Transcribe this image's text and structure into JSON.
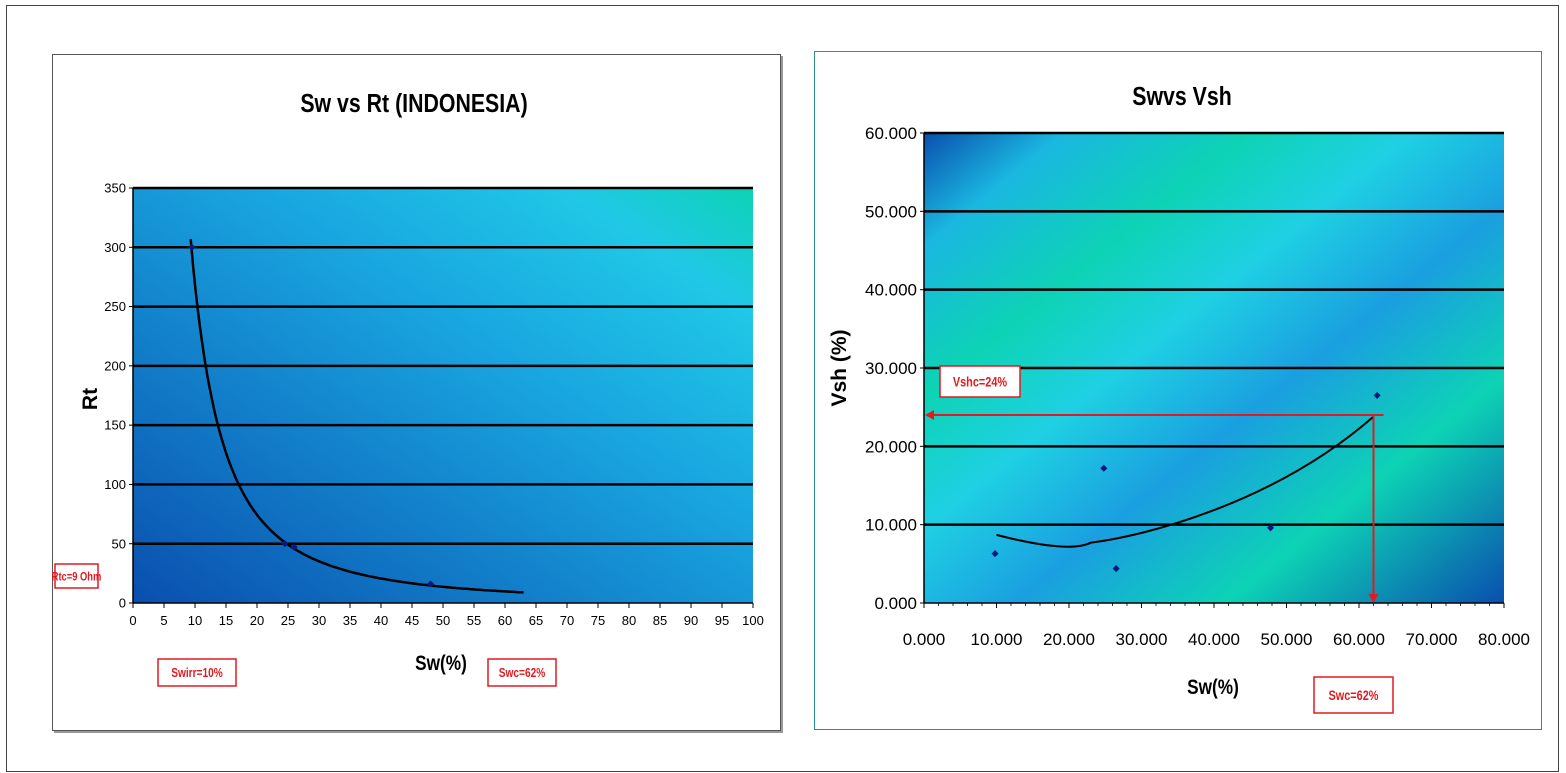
{
  "colors": {
    "plot_dark": "#0a4fae",
    "plot_mid": "#19a6e0",
    "plot_light": "#0dd3b5",
    "grid": "#000000",
    "annotation": "#e01b22",
    "point": "#0a1a7a"
  },
  "chart_data": [
    {
      "type": "scatter",
      "title": "Sw vs Rt (INDONESIA)",
      "xlabel": "Sw(%)",
      "ylabel": "Rt",
      "xlim": [
        0,
        100
      ],
      "ylim": [
        0,
        350
      ],
      "xticks": [
        0,
        5,
        10,
        15,
        20,
        25,
        30,
        35,
        40,
        45,
        50,
        55,
        60,
        65,
        70,
        75,
        80,
        85,
        90,
        95,
        100
      ],
      "yticks": [
        0,
        50,
        100,
        150,
        200,
        250,
        300,
        350
      ],
      "tick_labels_x": [
        "0",
        "5",
        "10",
        "15",
        "20",
        "25",
        "30",
        "35",
        "40",
        "45",
        "50",
        "55",
        "60",
        "65",
        "70",
        "75",
        "80",
        "85",
        "90",
        "95",
        "100"
      ],
      "tick_labels_y": [
        "0",
        "50",
        "100",
        "150",
        "200",
        "250",
        "300",
        "350"
      ],
      "grid": true,
      "series": [
        {
          "points": [
            [
              9.5,
              300
            ],
            [
              24.5,
              50
            ],
            [
              26,
              47
            ],
            [
              48,
              16
            ]
          ]
        }
      ],
      "trendline": {
        "kind": "power",
        "coef": 19000,
        "exp": -1.85,
        "x_range": [
          9.3,
          63
        ]
      },
      "annotations": [
        {
          "text": "Rtc=9 Ohm",
          "target": "y"
        },
        {
          "text": "Swirr=10%",
          "target": "x"
        },
        {
          "text": "Swc=62%",
          "target": "x"
        }
      ]
    },
    {
      "type": "scatter",
      "title": "Swvs Vsh",
      "xlabel": "Sw(%)",
      "ylabel": "Vsh (%)",
      "xlim": [
        0,
        80
      ],
      "ylim": [
        0,
        60
      ],
      "xticks": [
        0,
        10,
        20,
        30,
        40,
        50,
        60,
        70,
        80
      ],
      "yticks": [
        0,
        10,
        20,
        30,
        40,
        50,
        60
      ],
      "tick_labels_x": [
        "0.000",
        "10.000",
        "20.000",
        "30.000",
        "40.000",
        "50.000",
        "60.000",
        "70.000",
        "80.000"
      ],
      "tick_labels_y": [
        "0.000",
        "10.000",
        "20.000",
        "30.000",
        "40.000",
        "50.000",
        "60.000"
      ],
      "grid": true,
      "series": [
        {
          "points": [
            [
              9.8,
              6.3
            ],
            [
              24.8,
              17.2
            ],
            [
              26.5,
              4.4
            ],
            [
              47.8,
              9.6
            ],
            [
              62.5,
              26.5
            ]
          ]
        }
      ],
      "trendline": {
        "kind": "poly2",
        "x_range": [
          10,
          62
        ],
        "points": [
          [
            10,
            8.7
          ],
          [
            20,
            7.7
          ],
          [
            36,
            10
          ],
          [
            62,
            23.8
          ]
        ]
      },
      "annotations": [
        {
          "text": "Vshc=24%",
          "target": "y"
        },
        {
          "text": "Swc=62%",
          "target": "x"
        }
      ],
      "cutoff": {
        "x": 62,
        "y": 24
      }
    }
  ]
}
